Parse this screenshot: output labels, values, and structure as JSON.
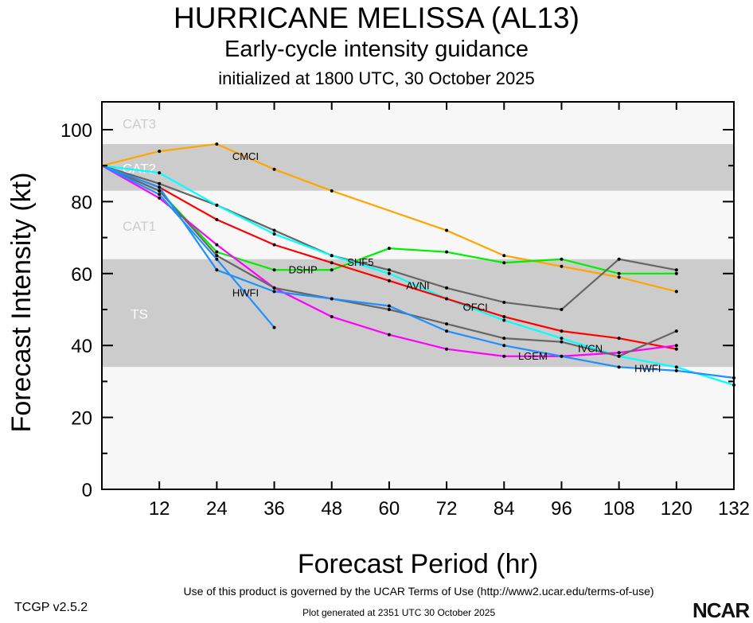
{
  "title": "HURRICANE MELISSA (AL13)",
  "subtitle": "Early-cycle intensity guidance",
  "initialized": "initialized at 1800 UTC, 30 October 2025",
  "footer": {
    "terms": "Use of this product is governed by the UCAR Terms of Use (http://www2.ucar.edu/terms-of-use)",
    "version": "TCGP v2.5.2",
    "generated": "Plot generated at 2351 UTC   30 October 2025",
    "logo": "NCAR"
  },
  "chart_data": {
    "type": "line",
    "xlabel": "Forecast Period (hr)",
    "ylabel": "Forecast Intensity (kt)",
    "xlim": [
      0,
      132
    ],
    "ylim": [
      0,
      108
    ],
    "xticks": [
      12,
      24,
      36,
      48,
      60,
      72,
      84,
      96,
      108,
      120,
      132
    ],
    "yticks": [
      0,
      20,
      40,
      60,
      80,
      100
    ],
    "bands": [
      {
        "label": "CAT3",
        "min": 96,
        "max": 108,
        "color": "#f7f7f7"
      },
      {
        "label": "CAT2",
        "min": 83,
        "max": 96,
        "color": "#cccccc"
      },
      {
        "label": "CAT1",
        "min": 64,
        "max": 83,
        "color": "#f7f7f7"
      },
      {
        "label": "TS",
        "min": 34,
        "max": 64,
        "color": "#cccccc"
      },
      {
        "label": "",
        "min": 0,
        "max": 34,
        "color": "#f7f7f7"
      }
    ],
    "series": [
      {
        "name": "CMCI",
        "color": "#ffa500",
        "x": [
          0,
          12,
          24,
          36,
          48,
          72,
          84,
          96,
          108,
          120
        ],
        "y": [
          90,
          94,
          96,
          89,
          83,
          72,
          65,
          62,
          59,
          55
        ]
      },
      {
        "name": "DSHP",
        "color": "#00ee00",
        "x": [
          0,
          12,
          24,
          36,
          48,
          60,
          72,
          84,
          96,
          108,
          120
        ],
        "y": [
          90,
          83,
          66,
          61,
          61,
          67,
          66,
          63,
          64,
          60,
          60
        ]
      },
      {
        "name": "SHF5",
        "color": "#666666",
        "x": [
          0,
          12,
          24,
          36,
          48,
          60,
          72,
          84,
          96,
          108,
          120
        ],
        "y": [
          90,
          85,
          79,
          72,
          65,
          61,
          56,
          52,
          50,
          64,
          61
        ]
      },
      {
        "name": "AVNI",
        "color": "#00ffff",
        "x": [
          0,
          12,
          24,
          36,
          48,
          60,
          72,
          84,
          96,
          108,
          120,
          132
        ],
        "y": [
          90,
          88,
          79,
          71,
          65,
          60,
          53,
          47,
          42,
          37,
          34,
          29
        ]
      },
      {
        "name": "OFCI",
        "color": "#ff0000",
        "x": [
          0,
          12,
          24,
          36,
          48,
          60,
          72,
          84,
          96,
          108,
          120
        ],
        "y": [
          90,
          84,
          75,
          68,
          63,
          58,
          53,
          48,
          44,
          42,
          39
        ]
      },
      {
        "name": "LGEM",
        "color": "#ff00ff",
        "x": [
          0,
          12,
          24,
          36,
          48,
          60,
          72,
          84,
          96,
          108,
          120
        ],
        "y": [
          90,
          81,
          68,
          56,
          48,
          43,
          39,
          37,
          37,
          38,
          40
        ]
      },
      {
        "name": "IVCN",
        "color": "#666666",
        "x": [
          0,
          12,
          24,
          36,
          48,
          60,
          72,
          84,
          96,
          108,
          120
        ],
        "y": [
          90,
          83,
          65,
          56,
          53,
          50,
          46,
          42,
          41,
          37,
          44
        ]
      },
      {
        "name": "HWFI",
        "color": "#1e90ff",
        "x": [
          0,
          12,
          24,
          36,
          48,
          60,
          72,
          84,
          96,
          108,
          120,
          132
        ],
        "y": [
          90,
          84,
          61,
          55,
          53,
          51,
          44,
          40,
          37,
          34,
          33,
          31
        ]
      },
      {
        "name": "HWFI",
        "color": "#1e90ff",
        "x": [
          0,
          12,
          24,
          36
        ],
        "y": [
          90,
          82,
          64,
          45
        ]
      }
    ]
  }
}
